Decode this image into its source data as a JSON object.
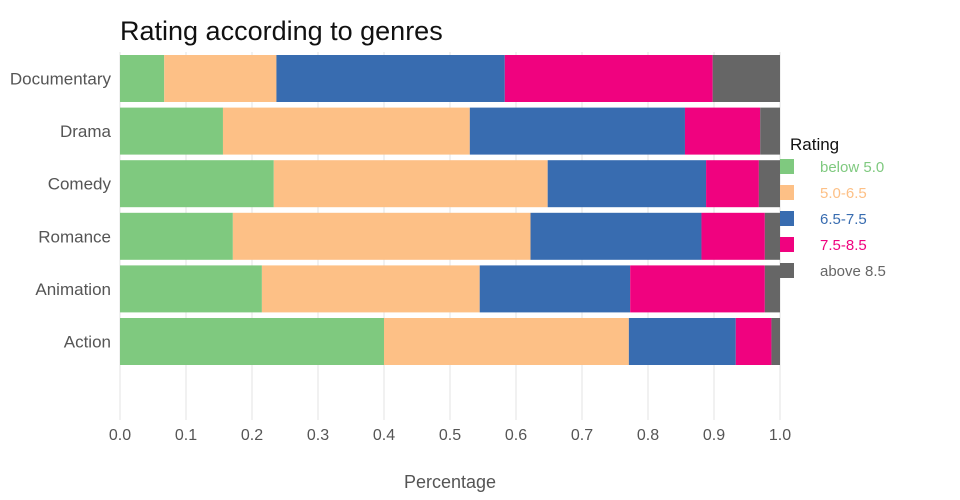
{
  "chart_data": {
    "type": "bar",
    "orientation": "horizontal",
    "stacked": true,
    "title": "Rating according to genres",
    "xlabel": "Percentage",
    "ylabel": "",
    "xlim": [
      0,
      1
    ],
    "xticks": [
      "0.0",
      "0.1",
      "0.2",
      "0.3",
      "0.4",
      "0.5",
      "0.6",
      "0.7",
      "0.8",
      "0.9",
      "1.0"
    ],
    "categories": [
      "Documentary",
      "Drama",
      "Comedy",
      "Romance",
      "Animation",
      "Action"
    ],
    "series": [
      {
        "name": "below 5.0",
        "color": "#7fc97f",
        "values": [
          0.067,
          0.156,
          0.233,
          0.171,
          0.215,
          0.4
        ]
      },
      {
        "name": "5.0-6.5",
        "color": "#fdc086",
        "values": [
          0.17,
          0.374,
          0.415,
          0.451,
          0.33,
          0.371
        ]
      },
      {
        "name": "6.5-7.5",
        "color": "#386cb0",
        "values": [
          0.346,
          0.326,
          0.24,
          0.259,
          0.228,
          0.162
        ]
      },
      {
        "name": "7.5-8.5",
        "color": "#f0027f",
        "values": [
          0.315,
          0.114,
          0.08,
          0.096,
          0.204,
          0.054
        ]
      },
      {
        "name": "above 8.5",
        "color": "#666666",
        "values": [
          0.102,
          0.03,
          0.032,
          0.023,
          0.023,
          0.013
        ]
      }
    ],
    "legend": {
      "title": "Rating",
      "position": "right"
    },
    "grid": true
  }
}
